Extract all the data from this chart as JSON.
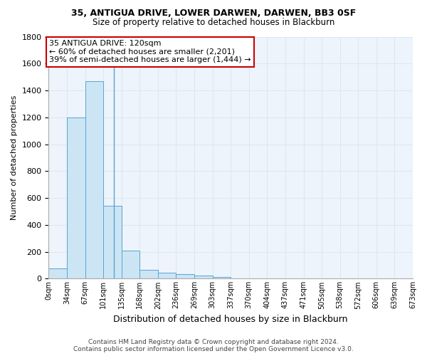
{
  "title": "35, ANTIGUA DRIVE, LOWER DARWEN, DARWEN, BB3 0SF",
  "subtitle": "Size of property relative to detached houses in Blackburn",
  "xlabel": "Distribution of detached houses by size in Blackburn",
  "ylabel": "Number of detached properties",
  "footer_line1": "Contains HM Land Registry data © Crown copyright and database right 2024.",
  "footer_line2": "Contains public sector information licensed under the Open Government Licence v3.0.",
  "annotation_line1": "35 ANTIGUA DRIVE: 120sqm",
  "annotation_line2": "← 60% of detached houses are smaller (2,201)",
  "annotation_line3": "39% of semi-detached houses are larger (1,444) →",
  "bin_labels": [
    "0sqm",
    "34sqm",
    "67sqm",
    "101sqm",
    "135sqm",
    "168sqm",
    "202sqm",
    "236sqm",
    "269sqm",
    "303sqm",
    "337sqm",
    "370sqm",
    "404sqm",
    "437sqm",
    "471sqm",
    "505sqm",
    "538sqm",
    "572sqm",
    "606sqm",
    "639sqm",
    "673sqm"
  ],
  "counts": [
    75,
    1200,
    1470,
    540,
    210,
    65,
    45,
    35,
    25,
    15,
    0,
    0,
    0,
    0,
    0,
    0,
    0,
    0,
    0,
    0
  ],
  "bar_color": "#cce5f5",
  "bar_edge_color": "#5ba3d0",
  "grid_color": "#dce8f5",
  "bg_color": "#edf4fb",
  "annotation_box_color": "#cc0000",
  "vline_color": "#5ba3d0",
  "vline_x_bin": 2.53,
  "ylim": [
    0,
    1800
  ],
  "yticks": [
    0,
    200,
    400,
    600,
    800,
    1000,
    1200,
    1400,
    1600,
    1800
  ],
  "title_fontsize": 9,
  "subtitle_fontsize": 8.5,
  "ylabel_fontsize": 8,
  "xlabel_fontsize": 9,
  "tick_fontsize": 8,
  "xtick_fontsize": 7,
  "footer_fontsize": 6.5,
  "annotation_fontsize": 8
}
